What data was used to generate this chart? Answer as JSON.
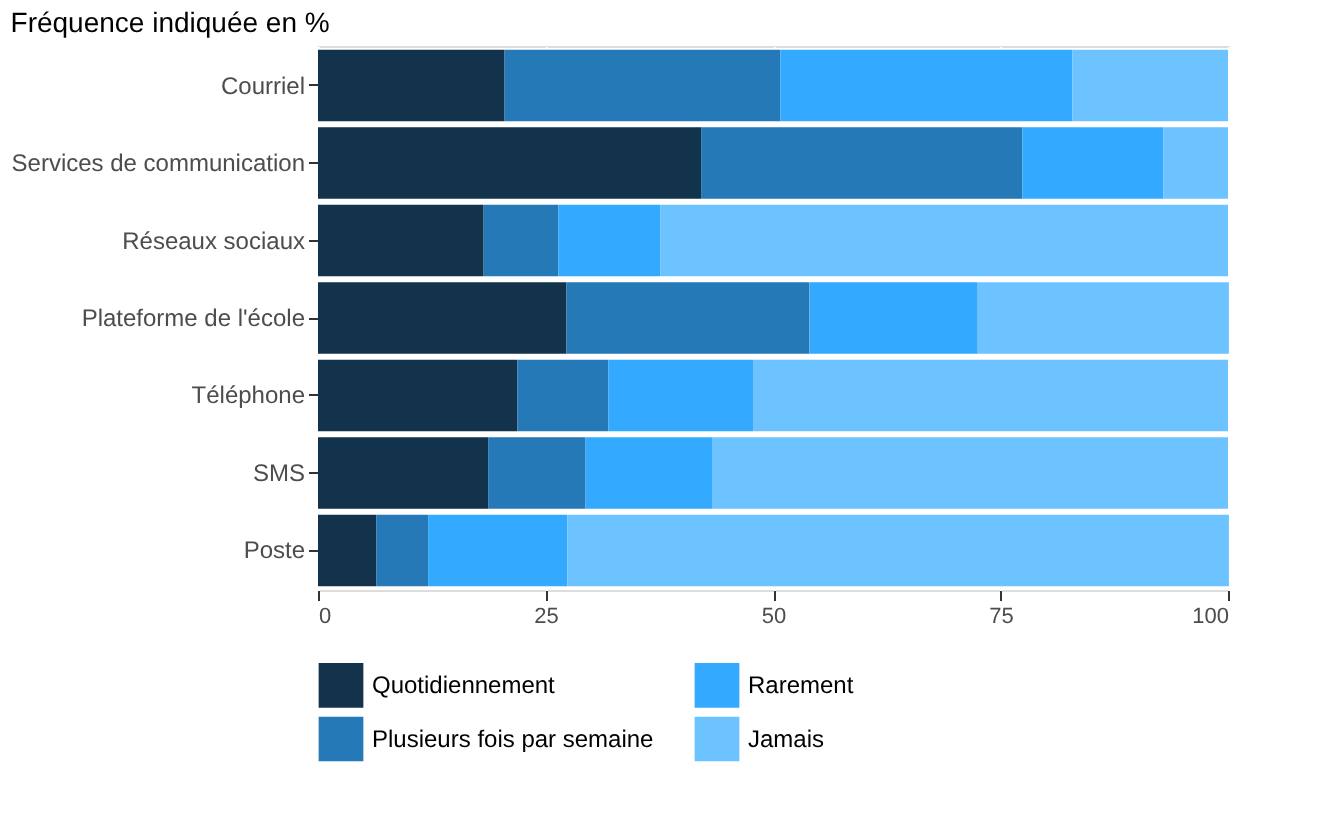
{
  "chart_data": {
    "type": "bar",
    "orientation": "horizontal",
    "stacked": true,
    "title": "Fréquence indiquée en %",
    "categories": [
      "Courriel",
      "Services de communication",
      "Réseaux sociaux",
      "Plateforme de l'école",
      "Téléphone",
      "SMS",
      "Poste"
    ],
    "series": [
      {
        "name": "Quotidiennement",
        "color": "#13324b",
        "values": [
          20.5,
          42.1,
          18.2,
          27.3,
          21.9,
          18.7,
          6.4
        ]
      },
      {
        "name": "Plusieurs fois par semaine",
        "color": "#2479b6",
        "values": [
          30.3,
          35.3,
          8.2,
          26.7,
          10.0,
          10.7,
          5.7
        ]
      },
      {
        "name": "Rarement",
        "color": "#33aaff",
        "values": [
          32.1,
          15.5,
          11.2,
          18.5,
          15.9,
          13.9,
          15.3
        ]
      },
      {
        "name": "Jamais",
        "color": "#6cc3ff",
        "values": [
          17.1,
          7.1,
          62.4,
          27.6,
          52.2,
          56.7,
          72.7
        ]
      }
    ],
    "xlim": [
      0,
      100
    ],
    "xticks": [
      0,
      25,
      50,
      75,
      100
    ],
    "grid": "x",
    "legend": "bottom"
  }
}
